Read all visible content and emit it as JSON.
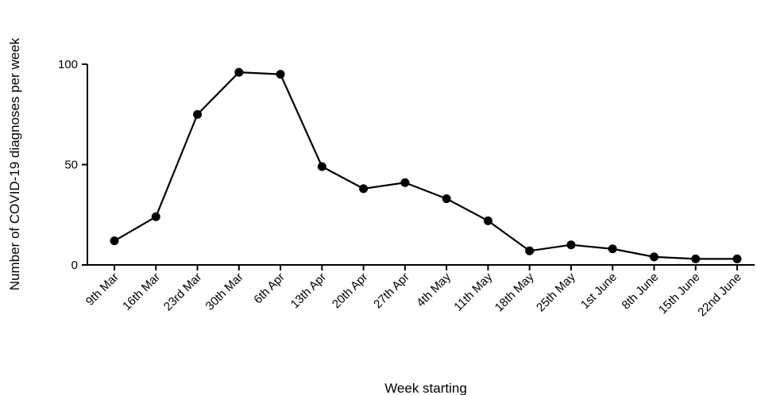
{
  "chart_data": {
    "type": "line",
    "title": "",
    "xlabel": "Week starting",
    "ylabel": "Number of COVID-19 diagnoses per week",
    "ylim": [
      0,
      100
    ],
    "yticks": [
      0,
      50,
      100
    ],
    "grid": false,
    "legend": "none",
    "categories": [
      "9th Mar",
      "16th Mar",
      "23rd Mar",
      "30th Mar",
      "6th Apr",
      "13th Apr",
      "20th Apr",
      "27th Apr",
      "4th May",
      "11th May",
      "18th May",
      "25th May",
      "1st June",
      "8th June",
      "15th June",
      "22nd June"
    ],
    "series": [
      {
        "values": [
          12,
          24,
          75,
          96,
          95,
          49,
          38,
          41,
          33,
          22,
          7,
          10,
          8,
          4,
          3,
          3
        ],
        "color": "#000000"
      }
    ]
  }
}
